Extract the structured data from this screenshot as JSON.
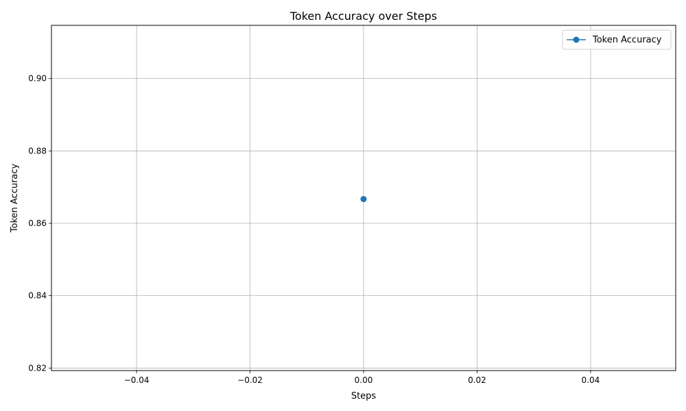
{
  "chart_data": {
    "type": "line",
    "title": "Token Accuracy over Steps",
    "xlabel": "Steps",
    "ylabel": "Token Accuracy",
    "xlim": [
      -0.055,
      0.055
    ],
    "ylim": [
      0.8193,
      0.9147
    ],
    "x_ticks": [
      -0.04,
      -0.02,
      0.0,
      0.02,
      0.04
    ],
    "x_tick_labels": [
      "−0.04",
      "−0.02",
      "0.00",
      "0.02",
      "0.04"
    ],
    "y_ticks": [
      0.82,
      0.84,
      0.86,
      0.88,
      0.9
    ],
    "y_tick_labels": [
      "0.82",
      "0.84",
      "0.86",
      "0.88",
      "0.90"
    ],
    "grid": true,
    "legend_position": "top-right",
    "series": [
      {
        "name": "Token Accuracy",
        "color": "#1f77b4",
        "marker": "circle",
        "x": [
          0.0
        ],
        "y": [
          0.8667
        ]
      }
    ]
  }
}
